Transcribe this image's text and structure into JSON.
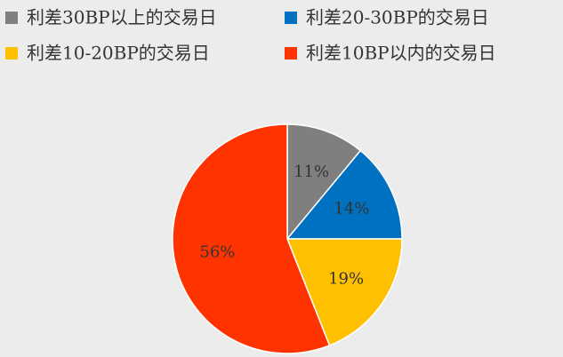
{
  "chart_data": {
    "type": "pie",
    "title": "",
    "legend_position": "top",
    "categories": [
      "利差30BP以上的交易日",
      "利差20-30BP的交易日",
      "利差10-20BP的交易日",
      "利差10BP以内的交易日"
    ],
    "values": [
      11,
      14,
      19,
      56
    ],
    "value_labels": [
      "11%",
      "14%",
      "19%",
      "56%"
    ],
    "colors": [
      "#7f7f7f",
      "#0070c0",
      "#ffc000",
      "#ff3300"
    ]
  }
}
